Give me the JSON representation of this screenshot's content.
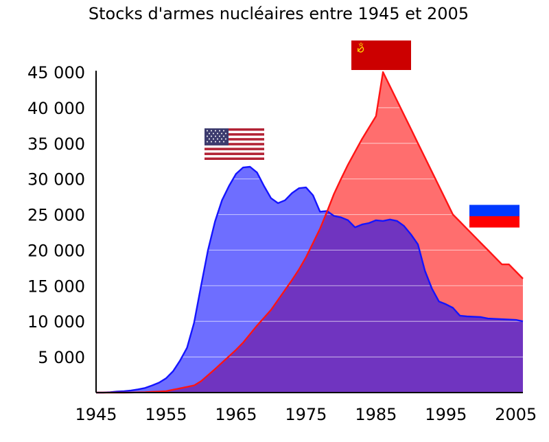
{
  "chart_data": {
    "type": "area",
    "title": "Stocks d'armes nucléaires entre 1945 et 2005",
    "xlabel": "",
    "ylabel": "",
    "xlim": [
      1945,
      2005
    ],
    "ylim": [
      0,
      45000
    ],
    "x_ticks": [
      "1945",
      "1955",
      "1965",
      "1975",
      "1985",
      "1995",
      "2005"
    ],
    "x_tick_values": [
      1945,
      1955,
      1965,
      1975,
      1985,
      1995,
      2005
    ],
    "y_ticks": [
      "5 000",
      "10 000",
      "15 000",
      "20 000",
      "25 000",
      "30 000",
      "35 000",
      "40 000",
      "45 000"
    ],
    "y_tick_values": [
      5000,
      10000,
      15000,
      20000,
      25000,
      30000,
      35000,
      40000,
      45000
    ],
    "grid": "horizontal",
    "series": [
      {
        "flag": "usa",
        "color": "#1414ff",
        "fill": "#6e6eff",
        "points": [
          [
            1945,
            0
          ],
          [
            1946,
            0
          ],
          [
            1947,
            50
          ],
          [
            1948,
            150
          ],
          [
            1949,
            200
          ],
          [
            1950,
            300
          ],
          [
            1951,
            450
          ],
          [
            1952,
            650
          ],
          [
            1953,
            1000
          ],
          [
            1954,
            1400
          ],
          [
            1955,
            2000
          ],
          [
            1956,
            3000
          ],
          [
            1957,
            4500
          ],
          [
            1958,
            6300
          ],
          [
            1959,
            9800
          ],
          [
            1960,
            15000
          ],
          [
            1961,
            20000
          ],
          [
            1962,
            24000
          ],
          [
            1963,
            27000
          ],
          [
            1964,
            29000
          ],
          [
            1965,
            30700
          ],
          [
            1966,
            31600
          ],
          [
            1967,
            31700
          ],
          [
            1968,
            30900
          ],
          [
            1969,
            29000
          ],
          [
            1970,
            27300
          ],
          [
            1971,
            26600
          ],
          [
            1972,
            27000
          ],
          [
            1973,
            28000
          ],
          [
            1974,
            28700
          ],
          [
            1975,
            28800
          ],
          [
            1976,
            27700
          ],
          [
            1977,
            25400
          ],
          [
            1978,
            25500
          ],
          [
            1979,
            24800
          ],
          [
            1980,
            24600
          ],
          [
            1981,
            24200
          ],
          [
            1982,
            23200
          ],
          [
            1983,
            23600
          ],
          [
            1984,
            23800
          ],
          [
            1985,
            24200
          ],
          [
            1986,
            24100
          ],
          [
            1987,
            24300
          ],
          [
            1988,
            24100
          ],
          [
            1989,
            23400
          ],
          [
            1990,
            22200
          ],
          [
            1991,
            20800
          ],
          [
            1992,
            17100
          ],
          [
            1993,
            14600
          ],
          [
            1994,
            12800
          ],
          [
            1995,
            12400
          ],
          [
            1996,
            11900
          ],
          [
            1997,
            10800
          ],
          [
            1998,
            10700
          ],
          [
            1999,
            10650
          ],
          [
            2000,
            10600
          ],
          [
            2001,
            10400
          ],
          [
            2002,
            10350
          ],
          [
            2003,
            10300
          ],
          [
            2004,
            10250
          ],
          [
            2005,
            10200
          ],
          [
            2006,
            10000
          ]
        ]
      },
      {
        "flag": "ussr-russia",
        "color": "#ff1414",
        "fill": "#ff6e6e",
        "points": [
          [
            1945,
            0
          ],
          [
            1949,
            0
          ],
          [
            1950,
            5
          ],
          [
            1951,
            25
          ],
          [
            1952,
            50
          ],
          [
            1953,
            120
          ],
          [
            1954,
            150
          ],
          [
            1955,
            200
          ],
          [
            1956,
            400
          ],
          [
            1957,
            600
          ],
          [
            1958,
            800
          ],
          [
            1959,
            1000
          ],
          [
            1960,
            1600
          ],
          [
            1961,
            2450
          ],
          [
            1962,
            3300
          ],
          [
            1963,
            4200
          ],
          [
            1964,
            5100
          ],
          [
            1965,
            6000
          ],
          [
            1966,
            7000
          ],
          [
            1967,
            8200
          ],
          [
            1968,
            9400
          ],
          [
            1969,
            10500
          ],
          [
            1970,
            11600
          ],
          [
            1971,
            13000
          ],
          [
            1972,
            14400
          ],
          [
            1973,
            15800
          ],
          [
            1974,
            17300
          ],
          [
            1975,
            19000
          ],
          [
            1976,
            21000
          ],
          [
            1977,
            23000
          ],
          [
            1978,
            25400
          ],
          [
            1979,
            27900
          ],
          [
            1980,
            30000
          ],
          [
            1981,
            32000
          ],
          [
            1982,
            33800
          ],
          [
            1983,
            35600
          ],
          [
            1984,
            37200
          ],
          [
            1985,
            38800
          ],
          [
            1986,
            45000
          ],
          [
            1987,
            43000
          ],
          [
            1988,
            41000
          ],
          [
            1989,
            39000
          ],
          [
            1990,
            37000
          ],
          [
            1991,
            35000
          ],
          [
            1992,
            33000
          ],
          [
            1993,
            31000
          ],
          [
            1994,
            29000
          ],
          [
            1995,
            27000
          ],
          [
            1996,
            25000
          ],
          [
            1997,
            24000
          ],
          [
            1998,
            23000
          ],
          [
            1999,
            22000
          ],
          [
            2000,
            21000
          ],
          [
            2001,
            20000
          ],
          [
            2002,
            19000
          ],
          [
            2003,
            18000
          ],
          [
            2004,
            18000
          ],
          [
            2005,
            17000
          ],
          [
            2006,
            16000
          ]
        ]
      }
    ],
    "flags": [
      {
        "name": "usa",
        "year": 1966.3,
        "value": 33200
      },
      {
        "name": "ussr",
        "year": 1983.5,
        "value": 47600
      },
      {
        "name": "russia",
        "year": 2002.5,
        "value": 26000
      }
    ]
  }
}
